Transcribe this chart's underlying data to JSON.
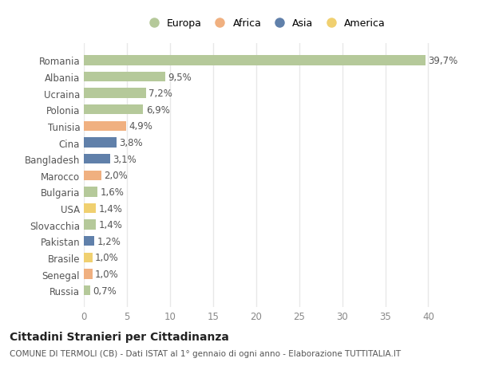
{
  "countries": [
    "Romania",
    "Albania",
    "Ucraina",
    "Polonia",
    "Tunisia",
    "Cina",
    "Bangladesh",
    "Marocco",
    "Bulgaria",
    "USA",
    "Slovacchia",
    "Pakistan",
    "Brasile",
    "Senegal",
    "Russia"
  ],
  "values": [
    39.7,
    9.5,
    7.2,
    6.9,
    4.9,
    3.8,
    3.1,
    2.0,
    1.6,
    1.4,
    1.4,
    1.2,
    1.0,
    1.0,
    0.7
  ],
  "labels": [
    "39,7%",
    "9,5%",
    "7,2%",
    "6,9%",
    "4,9%",
    "3,8%",
    "3,1%",
    "2,0%",
    "1,6%",
    "1,4%",
    "1,4%",
    "1,2%",
    "1,0%",
    "1,0%",
    "0,7%"
  ],
  "continents": [
    "Europa",
    "Europa",
    "Europa",
    "Europa",
    "Africa",
    "Asia",
    "Asia",
    "Africa",
    "Europa",
    "America",
    "Europa",
    "Asia",
    "America",
    "Africa",
    "Europa"
  ],
  "continent_colors": {
    "Europa": "#b5c99a",
    "Africa": "#f0b080",
    "Asia": "#6080aa",
    "America": "#f0d070"
  },
  "legend_order": [
    "Europa",
    "Africa",
    "Asia",
    "America"
  ],
  "legend_colors": [
    "#b5c99a",
    "#f0b080",
    "#6080aa",
    "#f0d070"
  ],
  "xlim": [
    0,
    42
  ],
  "xticks": [
    0,
    5,
    10,
    15,
    20,
    25,
    30,
    35,
    40
  ],
  "title": "Cittadini Stranieri per Cittadinanza",
  "subtitle": "COMUNE DI TERMOLI (CB) - Dati ISTAT al 1° gennaio di ogni anno - Elaborazione TUTTITALIA.IT",
  "background_color": "#ffffff",
  "grid_color": "#e8e8e8",
  "label_fontsize": 8.5,
  "tick_fontsize": 8.5,
  "bar_height": 0.6
}
